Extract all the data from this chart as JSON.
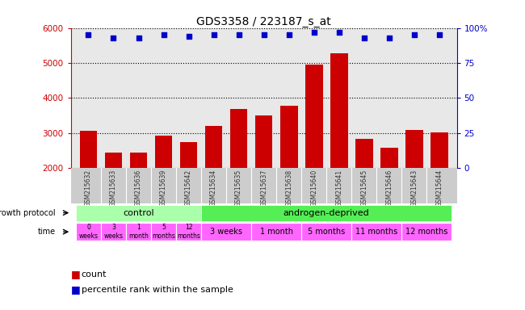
{
  "title": "GDS3358 / 223187_s_at",
  "samples": [
    "GSM215632",
    "GSM215633",
    "GSM215636",
    "GSM215639",
    "GSM215642",
    "GSM215634",
    "GSM215635",
    "GSM215637",
    "GSM215638",
    "GSM215640",
    "GSM215641",
    "GSM215645",
    "GSM215646",
    "GSM215643",
    "GSM215644"
  ],
  "counts": [
    3060,
    2440,
    2435,
    2920,
    2740,
    3200,
    3680,
    3500,
    3780,
    4950,
    5280,
    2820,
    2580,
    3090,
    3010
  ],
  "percentile_ranks": [
    95,
    93,
    93,
    95,
    94,
    95,
    95,
    95,
    95,
    97,
    97,
    93,
    93,
    95,
    95
  ],
  "bar_color": "#cc0000",
  "dot_color": "#0000cc",
  "ylim_left": [
    2000,
    6000
  ],
  "ylim_right": [
    0,
    100
  ],
  "yticks_left": [
    2000,
    3000,
    4000,
    5000,
    6000
  ],
  "yticks_right": [
    0,
    25,
    50,
    75,
    100
  ],
  "control_color": "#aaffaa",
  "androgen_color": "#55ee55",
  "time_color": "#ff66ff",
  "sample_label_color": "#333333",
  "left_axis_color": "#cc0000",
  "right_axis_color": "#0000cc",
  "bg_color": "#ffffff",
  "plot_bg_color": "#e8e8e8",
  "label_bg_color": "#cccccc",
  "time_ctrl_labels": [
    "0\nweeks",
    "3\nweeks",
    "1\nmonth",
    "5\nmonths",
    "12\nmonths"
  ],
  "time_and_labels": [
    "3 weeks",
    "1 month",
    "5 months",
    "11 months",
    "12 months"
  ]
}
